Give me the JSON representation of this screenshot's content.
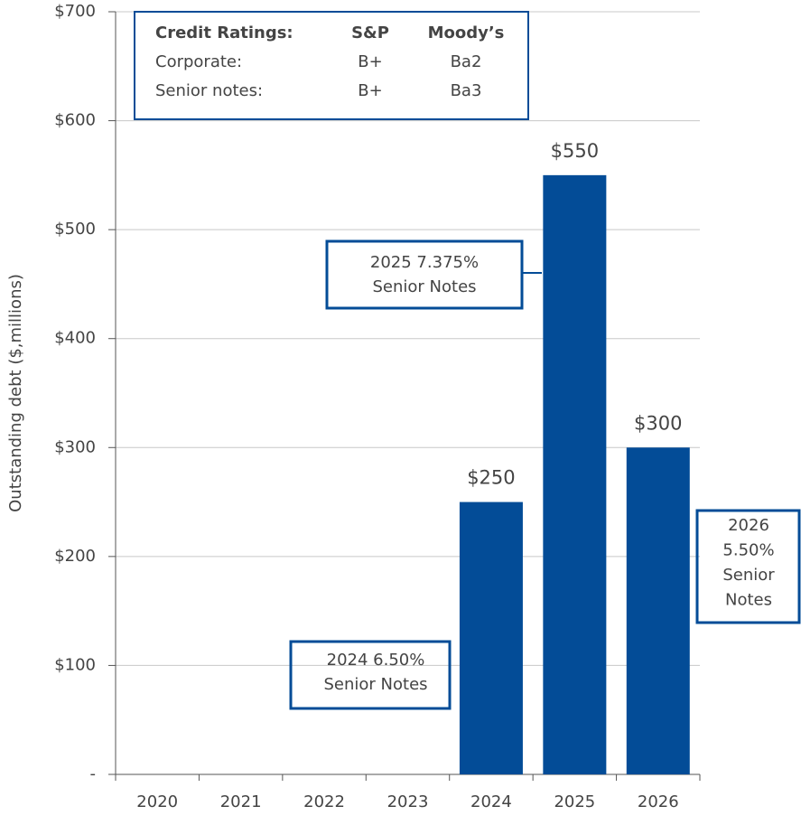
{
  "chart_data": {
    "type": "bar",
    "y_label": "Outstanding debt ($,millions)",
    "categories": [
      "2020",
      "2021",
      "2022",
      "2023",
      "2024",
      "2025",
      "2026"
    ],
    "values": [
      null,
      null,
      null,
      null,
      250,
      550,
      300
    ],
    "value_labels": [
      null,
      null,
      null,
      null,
      "$250",
      "$550",
      "$300"
    ],
    "color": "#034c97",
    "ylim": [
      0,
      700
    ],
    "yticks": [
      {
        "value": 0,
        "label": "-"
      },
      {
        "value": 100,
        "label": "$100"
      },
      {
        "value": 200,
        "label": "$200"
      },
      {
        "value": 300,
        "label": "$300"
      },
      {
        "value": 400,
        "label": "$400"
      },
      {
        "value": 500,
        "label": "$500"
      },
      {
        "value": 600,
        "label": "$600"
      },
      {
        "value": 700,
        "label": "$700"
      }
    ],
    "grid": true,
    "annotations": [
      {
        "lines": [
          "2024 6.50%",
          "Senior Notes"
        ]
      },
      {
        "lines": [
          "2025 7.375%",
          "Senior Notes"
        ]
      },
      {
        "lines": [
          "2026",
          "5.50%",
          "Senior",
          "Notes"
        ]
      }
    ],
    "table": {
      "header": [
        "Credit Ratings:",
        "S&P",
        "Moody’s"
      ],
      "rows": [
        [
          "Corporate:",
          "B+",
          "Ba2"
        ],
        [
          "Senior notes:",
          "B+",
          "Ba3"
        ]
      ]
    }
  }
}
